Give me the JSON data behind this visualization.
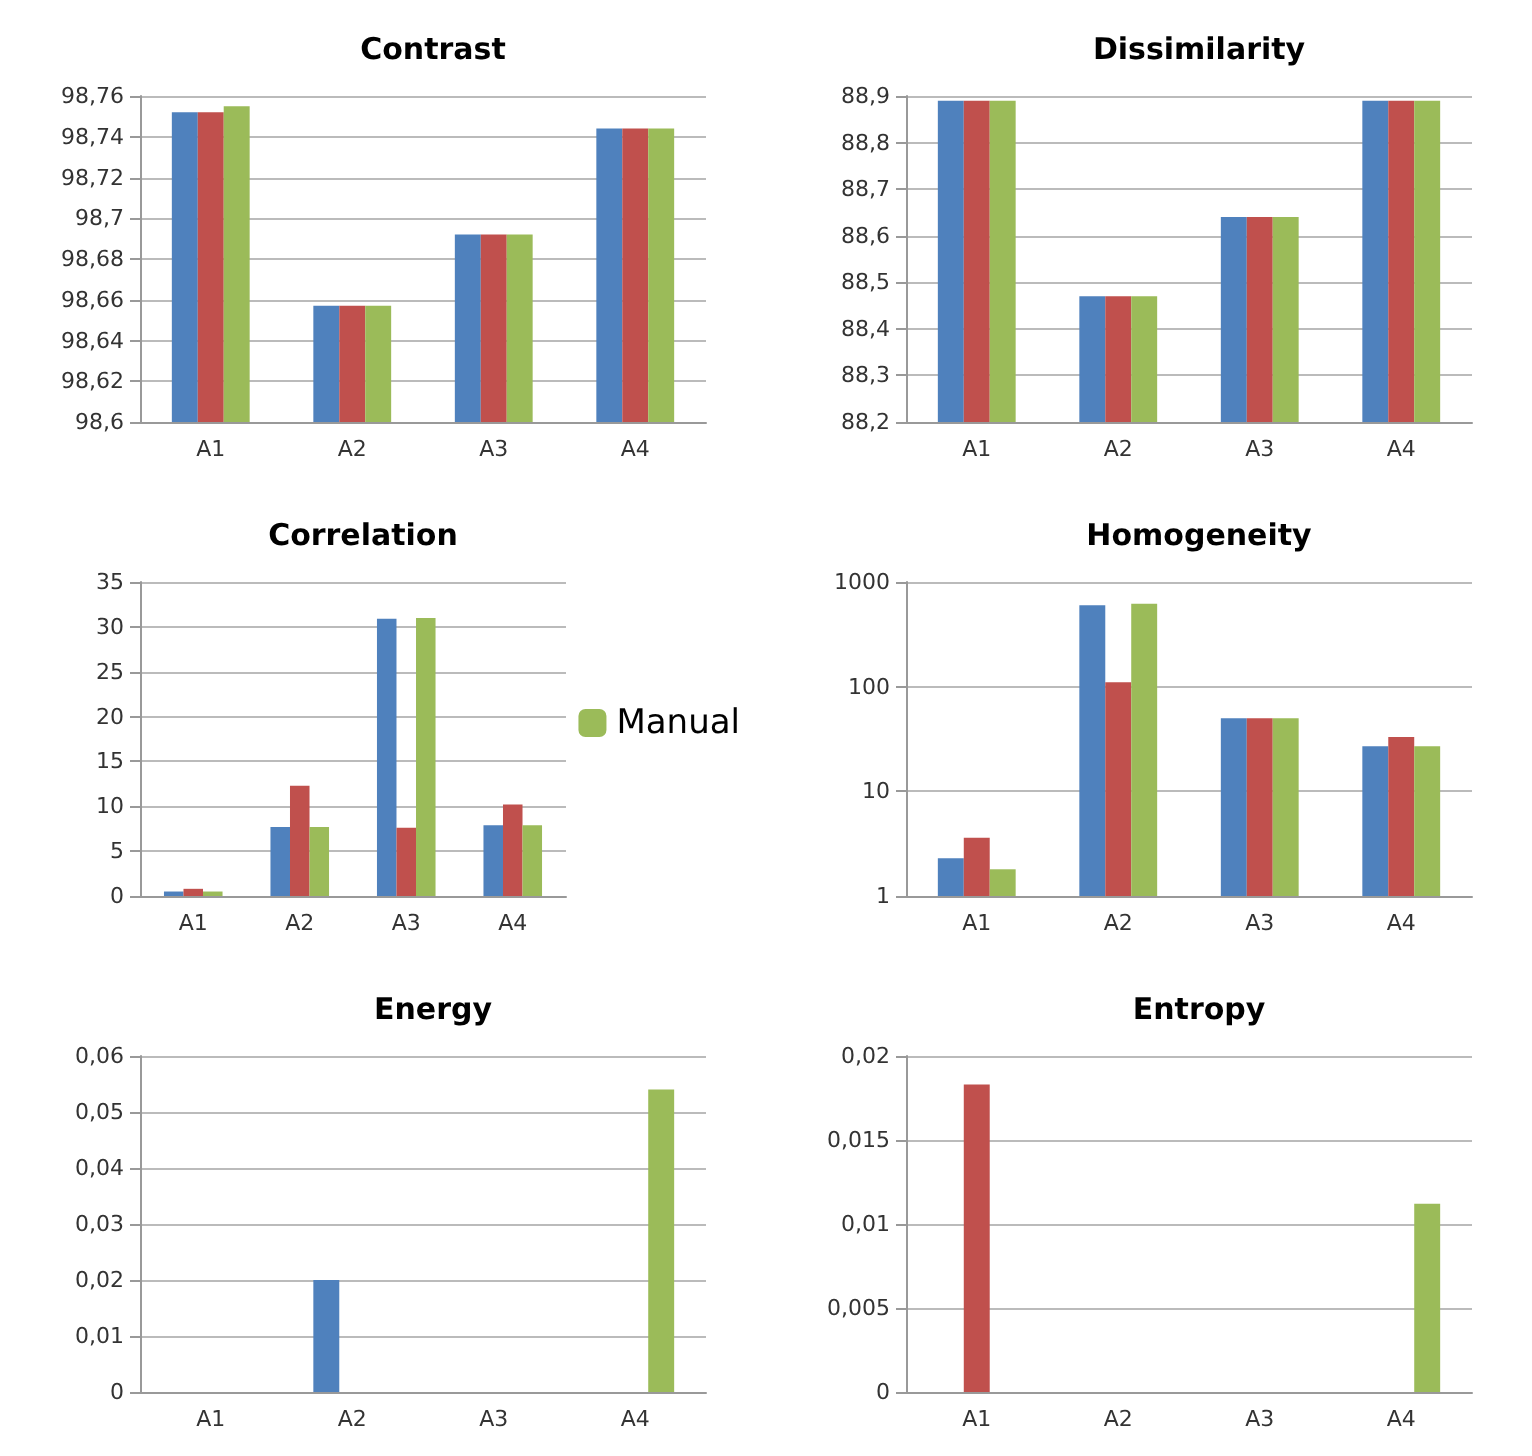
{
  "chart_data": [
    {
      "type": "bar",
      "title": "Contrast",
      "categories": [
        "A1",
        "A2",
        "A3",
        "A4"
      ],
      "series": [
        {
          "color": "#4f81bd",
          "values": [
            98.752,
            98.657,
            98.692,
            98.744
          ]
        },
        {
          "color": "#c0504d",
          "values": [
            98.752,
            98.657,
            98.692,
            98.744
          ]
        },
        {
          "color": "#9bbb59",
          "values": [
            98.755,
            98.657,
            98.692,
            98.744
          ]
        }
      ],
      "ylim": [
        98.6,
        98.76
      ],
      "yticks": [
        {
          "value": 98.6,
          "label": "98,6"
        },
        {
          "value": 98.62,
          "label": "98,62"
        },
        {
          "value": 98.64,
          "label": "98,64"
        },
        {
          "value": 98.66,
          "label": "98,66"
        },
        {
          "value": 98.68,
          "label": "98,68"
        },
        {
          "value": 98.7,
          "label": "98,7"
        },
        {
          "value": 98.72,
          "label": "98,72"
        },
        {
          "value": 98.74,
          "label": "98,74"
        },
        {
          "value": 98.76,
          "label": "98,76"
        }
      ],
      "grid": "y",
      "legend": false
    },
    {
      "type": "bar",
      "title": "Dissimilarity",
      "categories": [
        "A1",
        "A2",
        "A3",
        "A4"
      ],
      "series": [
        {
          "color": "#4f81bd",
          "values": [
            88.89,
            88.47,
            88.64,
            88.89
          ]
        },
        {
          "color": "#c0504d",
          "values": [
            88.89,
            88.47,
            88.64,
            88.89
          ]
        },
        {
          "color": "#9bbb59",
          "values": [
            88.89,
            88.47,
            88.64,
            88.89
          ]
        }
      ],
      "ylim": [
        88.2,
        88.9
      ],
      "yticks": [
        {
          "value": 88.2,
          "label": "88,2"
        },
        {
          "value": 88.3,
          "label": "88,3"
        },
        {
          "value": 88.4,
          "label": "88,4"
        },
        {
          "value": 88.5,
          "label": "88,5"
        },
        {
          "value": 88.6,
          "label": "88,6"
        },
        {
          "value": 88.7,
          "label": "88,7"
        },
        {
          "value": 88.8,
          "label": "88,8"
        },
        {
          "value": 88.9,
          "label": "88,9"
        }
      ],
      "grid": "y",
      "legend": false
    },
    {
      "type": "bar",
      "title": "Correlation",
      "categories": [
        "A1",
        "A2",
        "A3",
        "A4"
      ],
      "series": [
        {
          "color": "#4f81bd",
          "values": [
            0.5,
            7.7,
            30.9,
            7.9
          ]
        },
        {
          "color": "#c0504d",
          "values": [
            0.8,
            12.3,
            7.6,
            10.2
          ]
        },
        {
          "name": "Manual",
          "color": "#9bbb59",
          "values": [
            0.5,
            7.7,
            31,
            7.9
          ]
        }
      ],
      "ylim": [
        0,
        35
      ],
      "yticks": [
        0,
        5,
        10,
        15,
        20,
        25,
        30,
        35
      ],
      "grid": "y",
      "legend": "right"
    },
    {
      "type": "bar",
      "title": "Homogeneity",
      "categories": [
        "A1",
        "A2",
        "A3",
        "A4"
      ],
      "series": [
        {
          "color": "#4f81bd",
          "values": [
            2.3,
            600,
            50,
            27
          ]
        },
        {
          "color": "#c0504d",
          "values": [
            3.6,
            110,
            50,
            33
          ]
        },
        {
          "color": "#9bbb59",
          "values": [
            1.8,
            620,
            50,
            27
          ]
        }
      ],
      "ylim": [
        1,
        1000
      ],
      "yticks": [
        1,
        10,
        100,
        1000
      ],
      "log": "y",
      "grid": "y",
      "legend": false
    },
    {
      "type": "bar",
      "title": "Energy",
      "categories": [
        "A1",
        "A2",
        "A3",
        "A4"
      ],
      "series": [
        {
          "color": "#4f81bd",
          "values": [
            0,
            0.02,
            0,
            0
          ]
        },
        {
          "color": "#c0504d",
          "values": [
            0,
            0,
            0,
            0
          ]
        },
        {
          "color": "#9bbb59",
          "values": [
            0,
            0,
            0,
            0.054
          ]
        }
      ],
      "ylim": [
        0,
        0.06
      ],
      "yticks": [
        {
          "value": 0,
          "label": "0"
        },
        {
          "value": 0.01,
          "label": "0,01"
        },
        {
          "value": 0.02,
          "label": "0,02"
        },
        {
          "value": 0.03,
          "label": "0,03"
        },
        {
          "value": 0.04,
          "label": "0,04"
        },
        {
          "value": 0.05,
          "label": "0,05"
        },
        {
          "value": 0.06,
          "label": "0,06"
        }
      ],
      "grid": "y",
      "legend": false
    },
    {
      "type": "bar",
      "title": "Entropy",
      "categories": [
        "A1",
        "A2",
        "A3",
        "A4"
      ],
      "series": [
        {
          "color": "#4f81bd",
          "values": [
            0,
            0,
            0,
            0
          ]
        },
        {
          "color": "#c0504d",
          "values": [
            0.0183,
            0,
            0,
            0
          ]
        },
        {
          "color": "#9bbb59",
          "values": [
            0,
            0,
            0,
            0.0112
          ]
        }
      ],
      "ylim": [
        0,
        0.02
      ],
      "yticks": [
        {
          "value": 0,
          "label": "0"
        },
        {
          "value": 0.005,
          "label": "0,005"
        },
        {
          "value": 0.01,
          "label": "0,01"
        },
        {
          "value": 0.015,
          "label": "0,015"
        },
        {
          "value": 0.02,
          "label": "0,02"
        }
      ],
      "grid": "y",
      "legend": false
    }
  ]
}
